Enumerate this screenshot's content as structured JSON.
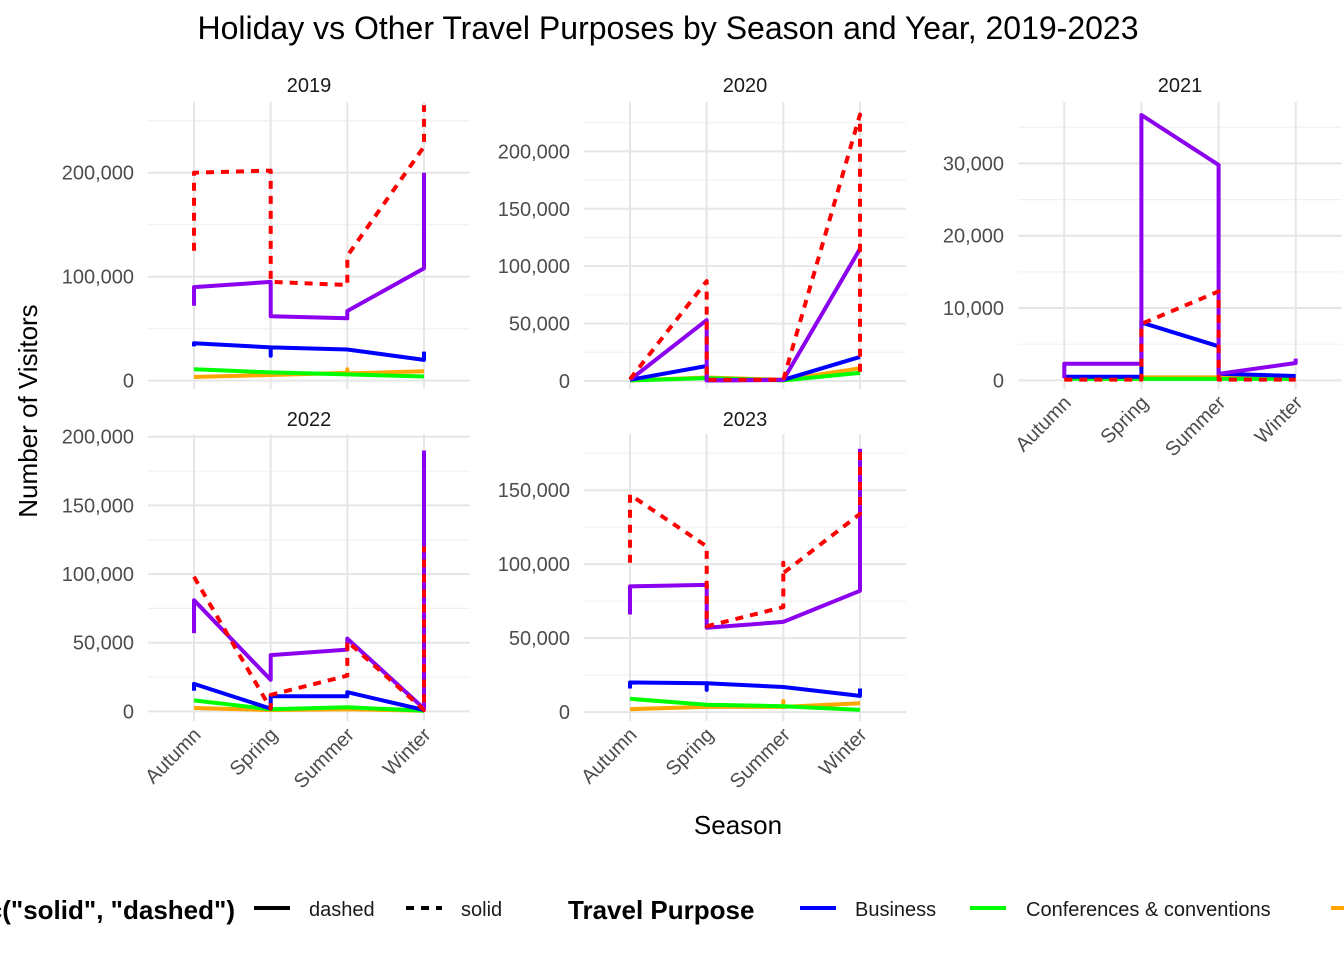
{
  "chart_data": {
    "type": "line",
    "title": "Holiday vs Other Travel Purposes by Season and Year, 2019-2023",
    "xlabel": "Season",
    "ylabel": "Number of Visitors",
    "categories": [
      "Autumn",
      "Spring",
      "Summer",
      "Winter"
    ],
    "grid": true,
    "legend_position": "bottom",
    "linetype_legend": {
      "title": "c(\"solid\", \"dashed\")",
      "items": [
        {
          "label": "dashed",
          "dash": false
        },
        {
          "label": "solid",
          "dash": true
        }
      ]
    },
    "color_legend": {
      "title": "Travel Purpose",
      "items": [
        {
          "label": "Business",
          "color": "#0000FF"
        },
        {
          "label": "Conferences & conventions",
          "color": "#00FF00"
        },
        {
          "label": "",
          "color": "#FFA500"
        }
      ]
    },
    "series_styles": {
      "Business": {
        "color": "#0000FF",
        "dashed": false
      },
      "Conferences & conventions": {
        "color": "#00FF00",
        "dashed": false
      },
      "orange": {
        "color": "#FFA500",
        "dashed": false
      },
      "holiday": {
        "color": "#FF0000",
        "dashed": true
      },
      "purple": {
        "color": "#8B00EE",
        "dashed": false
      }
    },
    "panels": [
      {
        "year": "2019",
        "y_ticks": [
          0,
          100000,
          200000
        ],
        "y_tick_labels": [
          "0",
          "100,000",
          "200,000"
        ],
        "ylim": [
          -8000,
          268000
        ],
        "show_x_labels": false,
        "series": [
          {
            "key": "holiday",
            "segments": [
              [
                [
                  0,
                  125000
                ],
                [
                  0,
                  200000
                ],
                [
                  1,
                  202000
                ],
                [
                  1,
                  95000
                ],
                [
                  2,
                  92000
                ],
                [
                  2,
                  120000
                ],
                [
                  3,
                  225000
                ],
                [
                  3,
                  265000
                ]
              ]
            ]
          },
          {
            "key": "purple",
            "segments": [
              [
                [
                  0,
                  72000
                ],
                [
                  0,
                  90000
                ],
                [
                  1,
                  95000
                ],
                [
                  1,
                  62000
                ],
                [
                  2,
                  60000
                ],
                [
                  2,
                  67000
                ],
                [
                  3,
                  108000
                ],
                [
                  3,
                  200000
                ]
              ]
            ]
          },
          {
            "key": "Business",
            "segments": [
              [
                [
                  0,
                  33000
                ],
                [
                  0,
                  36000
                ],
                [
                  1,
                  32000
                ],
                [
                  1,
                  24000
                ],
                [
                  1,
                  32000
                ],
                [
                  2,
                  30000
                ],
                [
                  3,
                  20000
                ],
                [
                  3,
                  28000
                ]
              ]
            ]
          },
          {
            "key": "Conferences & conventions",
            "segments": [
              [
                [
                  0,
                  11000
                ],
                [
                  1,
                  8000
                ],
                [
                  2,
                  6000
                ],
                [
                  3,
                  4000
                ]
              ]
            ]
          },
          {
            "key": "orange",
            "segments": [
              [
                [
                  0,
                  3500
                ],
                [
                  1,
                  5500
                ],
                [
                  2,
                  7500
                ],
                [
                  2,
                  11000
                ],
                [
                  2,
                  7000
                ],
                [
                  3,
                  9000
                ]
              ]
            ]
          }
        ]
      },
      {
        "year": "2020",
        "y_ticks": [
          0,
          50000,
          100000,
          150000,
          200000
        ],
        "y_tick_labels": [
          "0",
          "50,000",
          "100,000",
          "150,000",
          "200,000"
        ],
        "ylim": [
          -7000,
          243000
        ],
        "show_x_labels": false,
        "series": [
          {
            "key": "holiday",
            "segments": [
              [
                [
                  0,
                  1500
                ],
                [
                  1,
                  87000
                ],
                [
                  1,
                  1000
                ],
                [
                  2,
                  1000
                ],
                [
                  3,
                  232000
                ],
                [
                  3,
                  4000
                ]
              ]
            ]
          },
          {
            "key": "purple",
            "segments": [
              [
                [
                  0,
                  1000
                ],
                [
                  1,
                  53000
                ],
                [
                  1,
                  500
                ],
                [
                  2,
                  800
                ],
                [
                  3,
                  115000
                ]
              ]
            ]
          },
          {
            "key": "Business",
            "segments": [
              [
                [
                  0,
                  1000
                ],
                [
                  1,
                  13000
                ],
                [
                  1,
                  500
                ],
                [
                  2,
                  1000
                ],
                [
                  3,
                  21000
                ]
              ]
            ]
          },
          {
            "key": "Conferences & conventions",
            "segments": [
              [
                [
                  0,
                  500
                ],
                [
                  1,
                  2500
                ],
                [
                  2,
                  500
                ],
                [
                  3,
                  7000
                ]
              ]
            ]
          },
          {
            "key": "orange",
            "segments": [
              [
                [
                  0,
                  500
                ],
                [
                  1,
                  3000
                ],
                [
                  2,
                  1000
                ],
                [
                  3,
                  11000
                ]
              ]
            ]
          }
        ]
      },
      {
        "year": "2021",
        "y_ticks": [
          0,
          10000,
          20000,
          30000
        ],
        "y_tick_labels": [
          "0",
          "10,000",
          "20,000",
          "30,000"
        ],
        "ylim": [
          -1200,
          38500
        ],
        "show_x_labels": true,
        "series": [
          {
            "key": "holiday",
            "segments": [
              [
                [
                  0,
                  100
                ],
                [
                  1,
                  100
                ],
                [
                  1,
                  7800
                ],
                [
                  2,
                  12300
                ],
                [
                  2,
                  100
                ],
                [
                  3,
                  100
                ]
              ]
            ]
          },
          {
            "key": "purple",
            "segments": [
              [
                [
                  0,
                  300
                ],
                [
                  0,
                  2300
                ],
                [
                  1,
                  2300
                ],
                [
                  1,
                  36700
                ],
                [
                  2,
                  29800
                ],
                [
                  2,
                  900
                ],
                [
                  3,
                  2400
                ],
                [
                  3,
                  3000
                ]
              ]
            ]
          },
          {
            "key": "Business",
            "segments": [
              [
                [
                  0,
                  500
                ],
                [
                  1,
                  500
                ],
                [
                  1,
                  8000
                ],
                [
                  2,
                  4700
                ],
                [
                  2,
                  900
                ],
                [
                  3,
                  600
                ]
              ]
            ]
          },
          {
            "key": "Conferences & conventions",
            "segments": [
              [
                [
                  0,
                  200
                ],
                [
                  1,
                  200
                ],
                [
                  2,
                  200
                ],
                [
                  3,
                  200
                ]
              ]
            ]
          },
          {
            "key": "orange",
            "segments": [
              [
                [
                  0,
                  300
                ],
                [
                  1,
                  400
                ],
                [
                  2,
                  400
                ],
                [
                  3,
                  300
                ]
              ]
            ]
          }
        ]
      },
      {
        "year": "2022",
        "y_ticks": [
          0,
          50000,
          100000,
          150000,
          200000
        ],
        "y_tick_labels": [
          "0",
          "50,000",
          "100,000",
          "150,000",
          "200,000"
        ],
        "ylim": [
          -7000,
          202000
        ],
        "show_x_labels": true,
        "series": [
          {
            "key": "holiday",
            "segments": [
              [
                [
                  0,
                  98000
                ],
                [
                  1,
                  2000
                ],
                [
                  1,
                  12000
                ],
                [
                  2,
                  26000
                ],
                [
                  2,
                  51000
                ],
                [
                  3,
                  1000
                ],
                [
                  3,
                  120000
                ]
              ]
            ]
          },
          {
            "key": "purple",
            "segments": [
              [
                [
                  0,
                  57000
                ],
                [
                  0,
                  81000
                ],
                [
                  1,
                  23000
                ],
                [
                  1,
                  41000
                ],
                [
                  2,
                  45000
                ],
                [
                  2,
                  53000
                ],
                [
                  3,
                  2000
                ],
                [
                  3,
                  190000
                ]
              ]
            ]
          },
          {
            "key": "Business",
            "segments": [
              [
                [
                  0,
                  15000
                ],
                [
                  0,
                  20000
                ],
                [
                  1,
                  2000
                ],
                [
                  1,
                  11000
                ],
                [
                  2,
                  11000
                ],
                [
                  2,
                  14000
                ],
                [
                  3,
                  1000
                ]
              ]
            ]
          },
          {
            "key": "Conferences & conventions",
            "segments": [
              [
                [
                  0,
                  8000
                ],
                [
                  1,
                  1500
                ],
                [
                  2,
                  3000
                ],
                [
                  3,
                  500
                ]
              ]
            ]
          },
          {
            "key": "orange",
            "segments": [
              [
                [
                  0,
                  2500
                ],
                [
                  1,
                  1000
                ],
                [
                  2,
                  1500
                ],
                [
                  3,
                  500
                ]
              ]
            ]
          }
        ]
      },
      {
        "year": "2023",
        "y_ticks": [
          0,
          50000,
          100000,
          150000
        ],
        "y_tick_labels": [
          "0",
          "50,000",
          "100,000",
          "150,000"
        ],
        "ylim": [
          -6000,
          188000
        ],
        "show_x_labels": true,
        "series": [
          {
            "key": "holiday",
            "segments": [
              [
                [
                  0,
                  101000
                ],
                [
                  0,
                  147000
                ],
                [
                  1,
                  112000
                ],
                [
                  1,
                  58000
                ],
                [
                  2,
                  71000
                ],
                [
                  2,
                  101000
                ],
                [
                  2,
                  94000
                ],
                [
                  3,
                  134000
                ],
                [
                  3,
                  176000
                ]
              ]
            ]
          },
          {
            "key": "purple",
            "segments": [
              [
                [
                  0,
                  66000
                ],
                [
                  0,
                  85000
                ],
                [
                  1,
                  86000
                ],
                [
                  1,
                  57000
                ],
                [
                  2,
                  61000
                ],
                [
                  3,
                  82000
                ],
                [
                  3,
                  178000
                ]
              ]
            ]
          },
          {
            "key": "Business",
            "segments": [
              [
                [
                  0,
                  16000
                ],
                [
                  0,
                  20000
                ],
                [
                  1,
                  19500
                ],
                [
                  1,
                  15000
                ],
                [
                  1,
                  19500
                ],
                [
                  2,
                  17000
                ],
                [
                  3,
                  11000
                ],
                [
                  3,
                  16000
                ]
              ]
            ]
          },
          {
            "key": "Conferences & conventions",
            "segments": [
              [
                [
                  0,
                  9000
                ],
                [
                  1,
                  5000
                ],
                [
                  2,
                  4000
                ],
                [
                  3,
                  1500
                ]
              ]
            ]
          },
          {
            "key": "orange",
            "segments": [
              [
                [
                  0,
                  2000
                ],
                [
                  1,
                  3500
                ],
                [
                  2,
                  3500
                ],
                [
                  2,
                  7500
                ],
                [
                  2,
                  3500
                ],
                [
                  3,
                  6000
                ]
              ]
            ]
          }
        ]
      }
    ]
  }
}
